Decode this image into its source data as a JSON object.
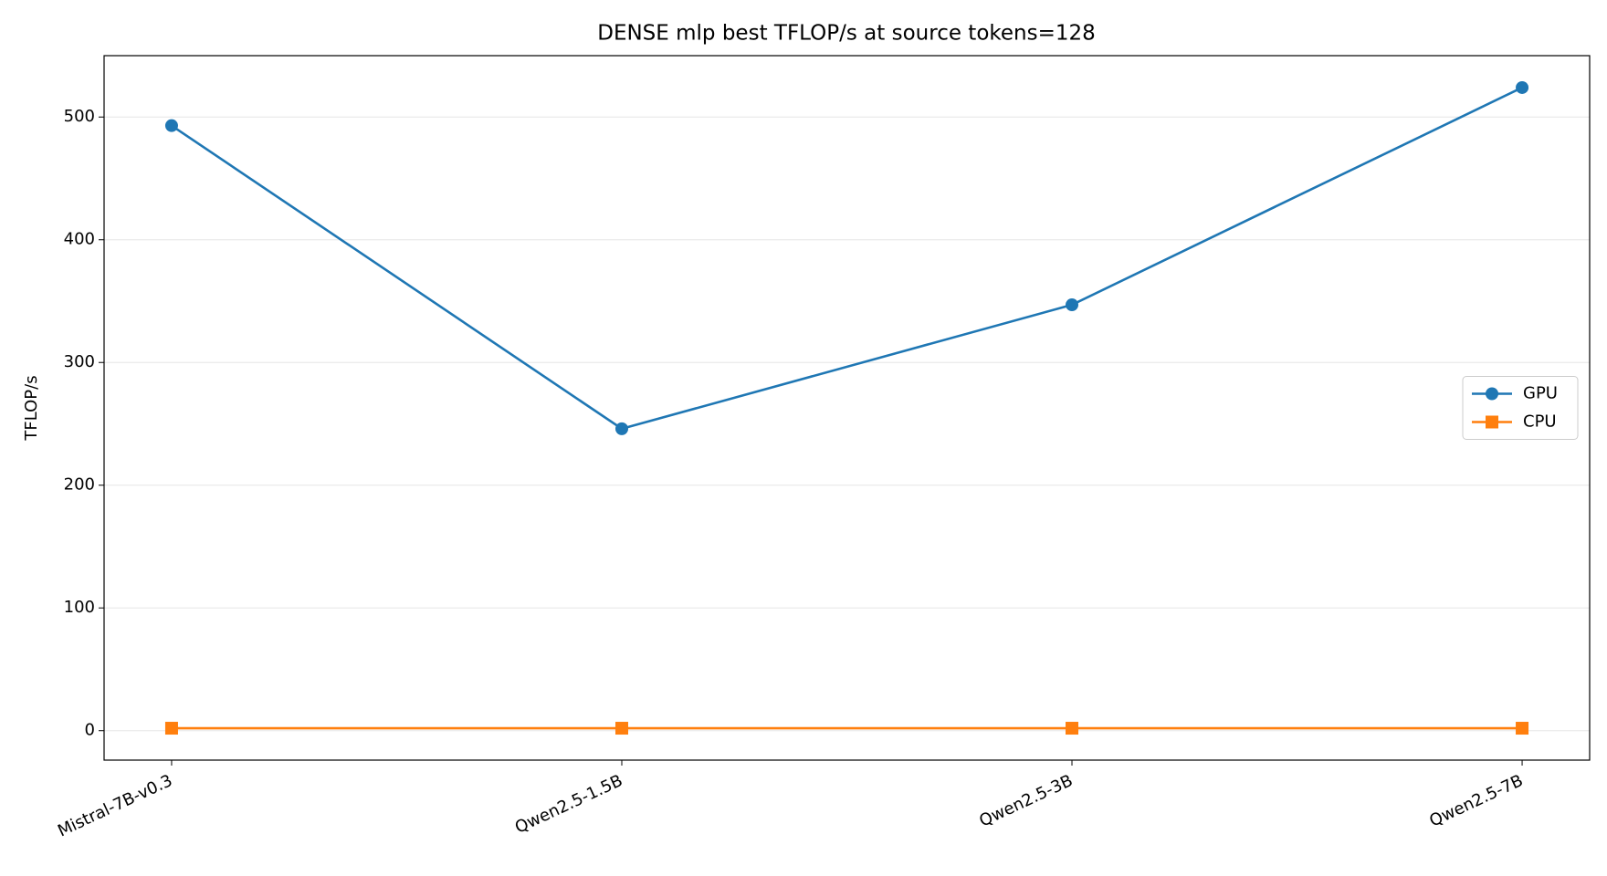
{
  "chart_data": {
    "type": "line",
    "title": "DENSE mlp best TFLOP/s at source tokens=128",
    "ylabel": "TFLOP/s",
    "categories": [
      "Mistral-7B-v0.3",
      "Qwen2.5-1.5B",
      "Qwen2.5-3B",
      "Qwen2.5-7B"
    ],
    "series": [
      {
        "name": "GPU",
        "color": "#1f77b4",
        "marker": "circle",
        "values": [
          493,
          246,
          347,
          524
        ]
      },
      {
        "name": "CPU",
        "color": "#ff7f0e",
        "marker": "square",
        "values": [
          2,
          2,
          2,
          2
        ]
      }
    ],
    "ylim": [
      -24,
      550
    ],
    "yticks": [
      0,
      100,
      200,
      300,
      400,
      500
    ],
    "grid": true,
    "legend": "center right"
  }
}
